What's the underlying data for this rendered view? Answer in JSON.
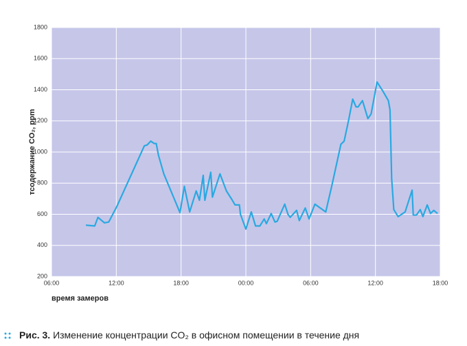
{
  "chart_data": {
    "type": "line",
    "y_label": "тсодержание CO₂, ppm",
    "x_label": "время замеров",
    "caption_label": "Рис. 3.",
    "caption": "Изменение концентрации CO₂ в офисном помещении в течение дня",
    "color": "#29a9e0",
    "background": "#c6c6e9",
    "grid": true,
    "x": [
      9.18,
      10.0,
      10.3,
      10.9,
      11.3,
      12.05,
      14.6,
      14.85,
      15.2,
      15.5,
      15.7,
      15.9,
      16.4,
      17.9,
      18.3,
      18.8,
      19.4,
      19.7,
      20.05,
      20.2,
      20.75,
      20.9,
      21.6,
      22.2,
      22.7,
      23.0,
      23.4,
      23.5,
      24.0,
      24.5,
      24.9,
      25.3,
      25.7,
      25.9,
      26.35,
      26.7,
      26.9,
      27.6,
      27.9,
      28.1,
      28.7,
      28.95,
      29.5,
      29.85,
      30.4,
      31.4,
      31.95,
      32.8,
      33.1,
      33.5,
      33.9,
      34.2,
      34.4,
      34.8,
      35.3,
      35.6,
      36.15,
      36.7,
      37.2,
      37.35,
      37.5,
      37.7,
      38.1,
      38.75,
      39.4,
      39.5,
      39.8,
      40.15,
      40.4,
      40.8,
      41.1,
      41.4,
      41.75
    ],
    "values": [
      530,
      525,
      580,
      545,
      550,
      650,
      1040,
      1045,
      1070,
      1055,
      1055,
      980,
      860,
      610,
      780,
      615,
      750,
      690,
      850,
      690,
      870,
      710,
      860,
      750,
      695,
      660,
      660,
      600,
      505,
      615,
      525,
      525,
      570,
      540,
      605,
      550,
      555,
      665,
      600,
      580,
      625,
      560,
      640,
      570,
      665,
      615,
      780,
      1050,
      1070,
      1200,
      1340,
      1290,
      1290,
      1330,
      1215,
      1245,
      1450,
      1390,
      1330,
      1270,
      830,
      630,
      585,
      615,
      755,
      595,
      595,
      630,
      585,
      660,
      605,
      625,
      605
    ],
    "xlim": [
      6,
      42
    ],
    "xticks": [
      {
        "value": 6,
        "label": "06:00"
      },
      {
        "value": 12,
        "label": "12:00"
      },
      {
        "value": 18,
        "label": "18:00"
      },
      {
        "value": 24,
        "label": "00:00"
      },
      {
        "value": 30,
        "label": "06:00"
      },
      {
        "value": 36,
        "label": "12:00"
      },
      {
        "value": 42,
        "label": "18:00"
      }
    ],
    "ylim": [
      200,
      1800
    ],
    "yticks": [
      200,
      400,
      600,
      800,
      1000,
      1200,
      1400,
      1600,
      1800
    ]
  }
}
